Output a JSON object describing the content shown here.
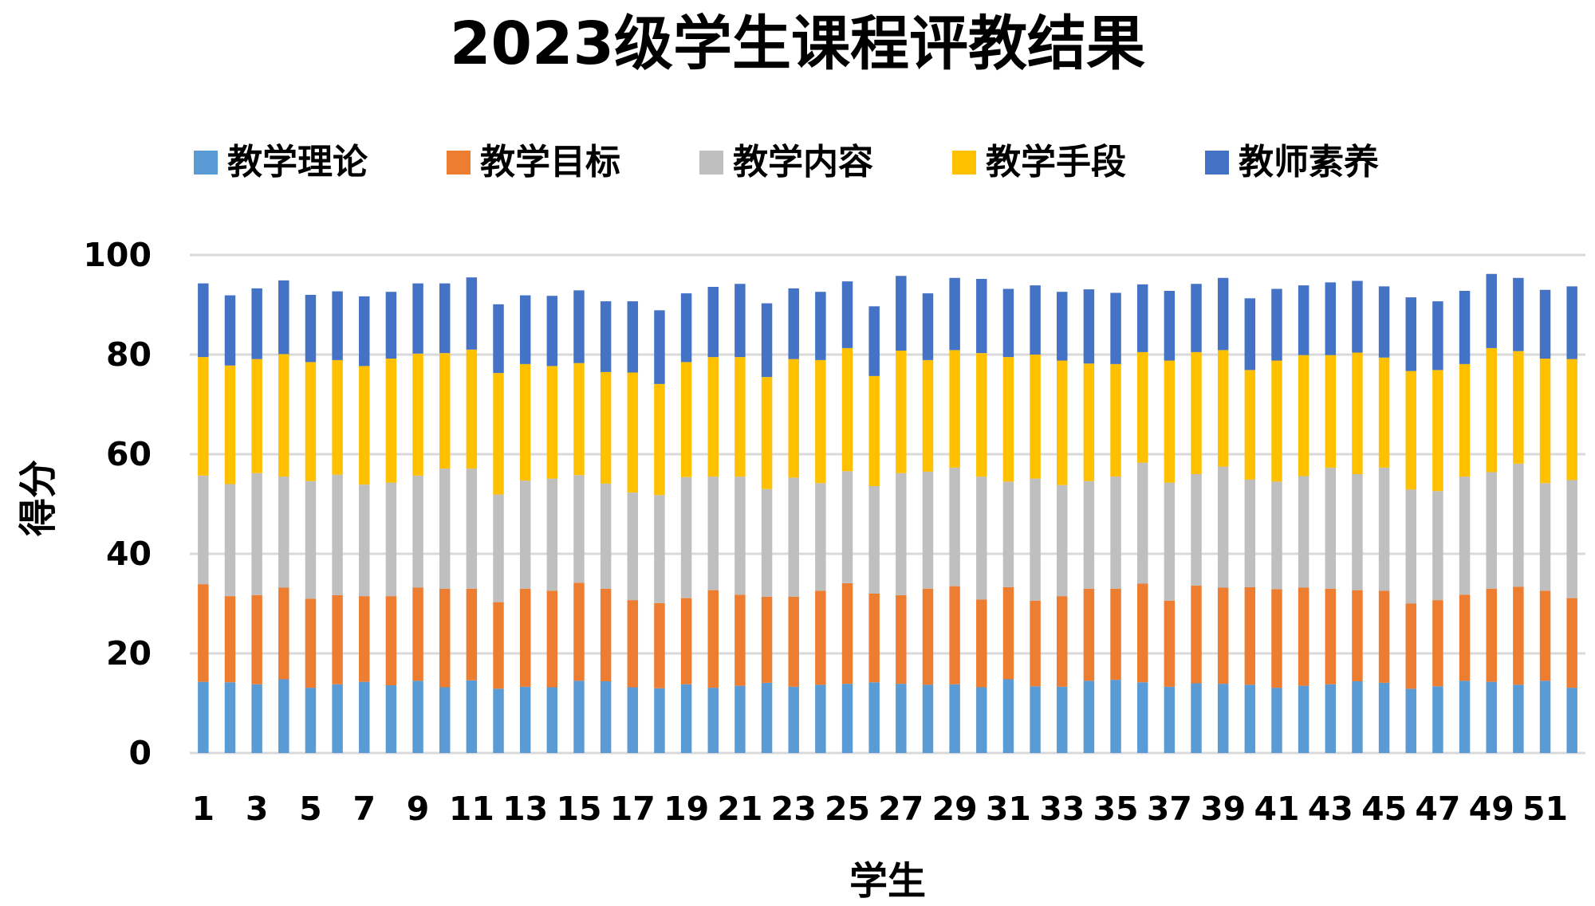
{
  "chart_data": {
    "type": "bar",
    "stacked": true,
    "title": "2023级学生课程评教结果",
    "xlabel": "学生",
    "ylabel": "得分",
    "ylim": [
      0,
      100
    ],
    "yticks": [
      0,
      20,
      40,
      60,
      80,
      100
    ],
    "grid": true,
    "legend_position": "top",
    "categories": [
      1,
      2,
      3,
      4,
      5,
      6,
      7,
      8,
      9,
      10,
      11,
      12,
      13,
      14,
      15,
      16,
      17,
      18,
      19,
      20,
      21,
      22,
      23,
      24,
      25,
      26,
      27,
      28,
      29,
      30,
      31,
      32,
      33,
      34,
      35,
      36,
      37,
      38,
      39,
      40,
      41,
      42,
      43,
      44,
      45,
      46,
      47,
      48,
      49,
      50,
      51,
      52
    ],
    "xtick_labels": [
      "1",
      "3",
      "5",
      "7",
      "9",
      "11",
      "13",
      "15",
      "17",
      "19",
      "21",
      "23",
      "25",
      "27",
      "29",
      "31",
      "33",
      "35",
      "37",
      "39",
      "41",
      "43",
      "45",
      "47",
      "49",
      "51"
    ],
    "series": [
      {
        "name": "教学理论",
        "color": "#5b9bd5",
        "values": [
          14.3,
          14.2,
          13.8,
          14.8,
          13.1,
          13.8,
          14.3,
          13.6,
          14.5,
          13.2,
          14.6,
          12.9,
          13.3,
          13.2,
          14.5,
          14.4,
          13.2,
          13.0,
          13.8,
          13.1,
          13.5,
          14.1,
          13.3,
          13.7,
          13.9,
          14.2,
          13.9,
          13.7,
          13.8,
          13.2,
          14.8,
          13.4,
          13.3,
          14.5,
          14.7,
          14.2,
          13.3,
          14.0,
          13.9,
          13.7,
          13.1,
          13.5,
          13.8,
          14.4,
          14.1,
          12.9,
          13.4,
          14.5,
          14.3,
          13.7,
          14.5,
          13.1
        ]
      },
      {
        "name": "教学目标",
        "color": "#ed7d31",
        "values": [
          19.6,
          17.3,
          17.9,
          18.4,
          17.9,
          17.9,
          17.2,
          17.9,
          18.7,
          19.8,
          18.4,
          17.4,
          19.7,
          19.4,
          19.7,
          18.6,
          17.5,
          17.1,
          17.3,
          19.6,
          18.3,
          17.3,
          18.1,
          18.9,
          20.2,
          17.8,
          17.8,
          19.3,
          19.7,
          17.6,
          18.5,
          17.2,
          18.2,
          18.5,
          18.3,
          19.8,
          17.3,
          19.6,
          19.3,
          19.6,
          19.8,
          19.7,
          19.2,
          18.3,
          18.5,
          17.1,
          17.3,
          17.3,
          18.7,
          19.7,
          18.1,
          18.0
        ]
      },
      {
        "name": "教学内容",
        "color": "#bfbfbf",
        "values": [
          21.8,
          22.5,
          24.5,
          22.3,
          23.6,
          24.2,
          22.4,
          22.8,
          22.5,
          24.1,
          24.1,
          21.6,
          21.7,
          22.5,
          21.6,
          21.1,
          21.6,
          21.7,
          24.3,
          22.8,
          23.7,
          21.6,
          23.9,
          21.6,
          22.5,
          21.6,
          24.5,
          23.5,
          23.8,
          24.7,
          21.2,
          24.5,
          22.3,
          21.6,
          22.5,
          24.3,
          23.7,
          22.4,
          24.3,
          21.6,
          21.6,
          22.4,
          24.3,
          23.3,
          24.7,
          22.9,
          21.9,
          23.7,
          23.4,
          24.7,
          21.6,
          23.7
        ]
      },
      {
        "name": "教学手段",
        "color": "#ffc000",
        "values": [
          23.8,
          23.8,
          22.9,
          24.6,
          23.9,
          23.0,
          23.8,
          24.9,
          24.5,
          23.2,
          23.9,
          24.4,
          23.4,
          22.6,
          22.5,
          22.4,
          24.1,
          22.3,
          23.1,
          24.0,
          24.0,
          22.5,
          23.8,
          24.7,
          24.7,
          22.1,
          24.6,
          22.4,
          23.6,
          24.8,
          25.0,
          24.9,
          25.0,
          23.6,
          22.6,
          22.2,
          24.5,
          24.5,
          23.4,
          22.0,
          24.3,
          24.3,
          22.6,
          24.4,
          22.1,
          23.8,
          24.3,
          22.6,
          24.9,
          22.6,
          25.0,
          24.3
        ]
      },
      {
        "name": "教师素养",
        "color": "#4472c4",
        "values": [
          14.8,
          14.1,
          14.2,
          14.8,
          13.5,
          13.8,
          14.0,
          13.4,
          14.1,
          14.0,
          14.5,
          13.8,
          13.8,
          14.1,
          14.6,
          14.2,
          14.3,
          14.8,
          13.8,
          14.1,
          14.7,
          14.8,
          14.2,
          13.7,
          13.4,
          14.0,
          15.0,
          13.4,
          14.5,
          14.9,
          13.7,
          13.9,
          13.8,
          14.9,
          14.3,
          13.6,
          14.0,
          13.7,
          14.5,
          14.4,
          14.4,
          14.0,
          14.6,
          14.4,
          14.3,
          14.8,
          13.8,
          14.7,
          14.9,
          14.7,
          13.8,
          14.6
        ]
      }
    ]
  }
}
